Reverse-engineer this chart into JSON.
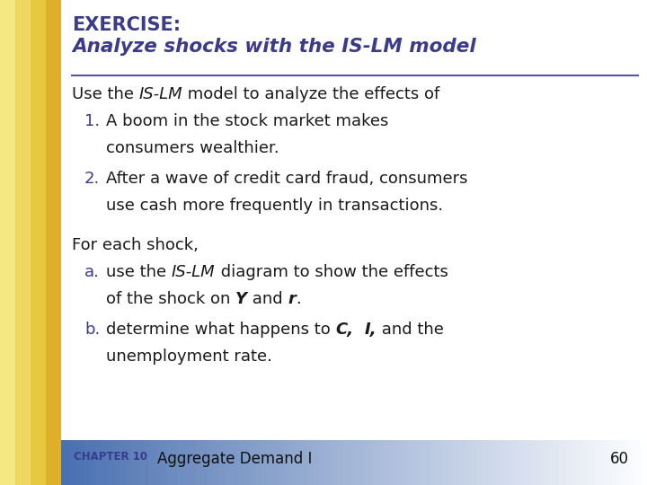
{
  "title_line1": "EXERCISE:",
  "title_line2": "Analyze shocks with the IS-LM model",
  "title_color": "#3B3B8C",
  "bg_color": "#FFFFFF",
  "left_strip_colors": [
    "#F5E070",
    "#EDD060",
    "#E4C050",
    "#DDB040",
    "#D5A030"
  ],
  "header_underline_color": "#5555AA",
  "body_text_color": "#1A1A1A",
  "numbered_color": "#3B3B8C",
  "lettered_color": "#3B3B8C",
  "footer_chapter": "CHAPTER 10",
  "footer_title": "Aggregate Demand I",
  "footer_page": "60",
  "footer_text_color": "#111111",
  "footer_chapter_color": "#3B3B8C",
  "slide_bg": "#D8DCE8",
  "footer_bg_left": "#4A70B0",
  "footer_bg_right": "#FFFFFF"
}
